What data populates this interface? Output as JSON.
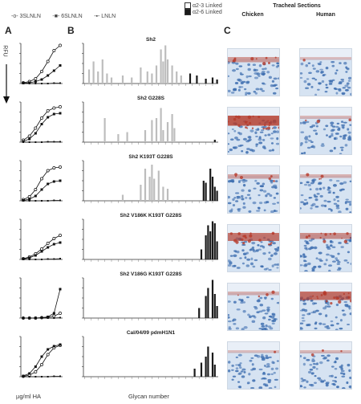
{
  "panels": {
    "a": "A",
    "b": "B",
    "c": "C"
  },
  "legend": {
    "series_a": [
      "3SLNLN",
      "6SLNLN",
      "LNLN"
    ],
    "series_b": [
      "α2-3 Linked",
      "α2-6 Linked"
    ]
  },
  "colors": {
    "alpha23": "#bdbdbd",
    "alpha26": "#1a1a1a",
    "tissue_bg": "#d6e3f2",
    "tissue_nuclei": "#3f6fb0",
    "stain": "#b53a2a"
  },
  "y_label_a": "RFU",
  "x_label_a": "µg/ml HA",
  "x_label_b": "Glycan number",
  "tracheal": {
    "title": "Tracheal Sections",
    "chicken": "Chicken",
    "human": "Human"
  },
  "row_titles": [
    "Sh2",
    "Sh2 G228S",
    "Sh2 K193T G228S",
    "Sh2 V186K K193T G228S",
    "Sh2 V186G K193T G228S",
    "Cal/04/09 pdmH1N1"
  ],
  "chart_data": [
    {
      "type": "line",
      "panel": "A",
      "ylabel": "RFU",
      "xlabel": "µg/ml HA",
      "rows": [
        {
          "row": "Sh2",
          "series": [
            {
              "name": "3SLNLN",
              "values": [
                0.02,
                0.05,
                0.12,
                0.3,
                0.55,
                0.82,
                0.95
              ]
            },
            {
              "name": "6SLNLN",
              "values": [
                0.01,
                0.02,
                0.05,
                0.1,
                0.2,
                0.32,
                0.45
              ]
            },
            {
              "name": "LNLN",
              "values": [
                0,
                0,
                0,
                0,
                0,
                0.01,
                0.01
              ]
            }
          ]
        },
        {
          "row": "Sh2 G228S",
          "series": [
            {
              "name": "3SLNLN",
              "values": [
                0.05,
                0.15,
                0.35,
                0.6,
                0.78,
                0.85,
                0.88
              ]
            },
            {
              "name": "6SLNLN",
              "values": [
                0.02,
                0.08,
                0.22,
                0.45,
                0.62,
                0.7,
                0.72
              ]
            },
            {
              "name": "LNLN",
              "values": [
                0,
                0,
                0,
                0,
                0.01,
                0.01,
                0.01
              ]
            }
          ]
        },
        {
          "row": "Sh2 K193T G228S",
          "series": [
            {
              "name": "3SLNLN",
              "values": [
                0.03,
                0.1,
                0.28,
                0.55,
                0.75,
                0.82,
                0.84
              ]
            },
            {
              "name": "6SLNLN",
              "values": [
                0.01,
                0.04,
                0.12,
                0.28,
                0.42,
                0.48,
                0.5
              ]
            },
            {
              "name": "LNLN",
              "values": [
                0,
                0,
                0,
                0,
                0,
                0.01,
                0.01
              ]
            }
          ]
        },
        {
          "row": "Sh2 V186K K193T G228S",
          "series": [
            {
              "name": "3SLNLN",
              "values": [
                0.02,
                0.06,
                0.14,
                0.26,
                0.4,
                0.52,
                0.6
              ]
            },
            {
              "name": "6SLNLN",
              "values": [
                0.01,
                0.04,
                0.1,
                0.2,
                0.3,
                0.38,
                0.42
              ]
            },
            {
              "name": "LNLN",
              "values": [
                0,
                0,
                0,
                0,
                0.01,
                0.01,
                0.02
              ]
            }
          ]
        },
        {
          "row": "Sh2 V186G K193T G228S",
          "series": [
            {
              "name": "3SLNLN",
              "values": [
                0,
                0,
                0,
                0.01,
                0.02,
                0.05,
                0.12
              ]
            },
            {
              "name": "6SLNLN",
              "values": [
                0,
                0,
                0,
                0.01,
                0.03,
                0.12,
                0.72
              ]
            },
            {
              "name": "LNLN",
              "values": [
                0,
                0,
                0,
                0,
                0,
                0,
                0.01
              ]
            }
          ]
        },
        {
          "row": "Cal/04/09 pdmH1N1",
          "series": [
            {
              "name": "3SLNLN",
              "values": [
                0.01,
                0.04,
                0.12,
                0.3,
                0.55,
                0.72,
                0.78
              ]
            },
            {
              "name": "6SLNLN",
              "values": [
                0.02,
                0.08,
                0.25,
                0.5,
                0.68,
                0.76,
                0.8
              ]
            },
            {
              "name": "LNLN",
              "values": [
                0,
                0,
                0,
                0,
                0,
                0.01,
                0.01
              ]
            }
          ]
        }
      ]
    },
    {
      "type": "bar",
      "panel": "B",
      "xlabel": "Glycan number",
      "glycan_count": 60,
      "alpha23_range": [
        1,
        46
      ],
      "alpha26_range": [
        47,
        60
      ],
      "rows": [
        {
          "row": "Sh2",
          "bars": [
            [
              3,
              0.35
            ],
            [
              5,
              0.55
            ],
            [
              7,
              0.3
            ],
            [
              9,
              0.6
            ],
            [
              11,
              0.25
            ],
            [
              13,
              0.15
            ],
            [
              18,
              0.2
            ],
            [
              22,
              0.15
            ],
            [
              26,
              0.4
            ],
            [
              29,
              0.3
            ],
            [
              31,
              0.25
            ],
            [
              33,
              0.45
            ],
            [
              35,
              0.85
            ],
            [
              36,
              0.55
            ],
            [
              37,
              0.95
            ],
            [
              38,
              0.6
            ],
            [
              40,
              0.45
            ],
            [
              42,
              0.3
            ],
            [
              44,
              0.2
            ],
            [
              48,
              0.25
            ],
            [
              51,
              0.2
            ],
            [
              55,
              0.12
            ],
            [
              58,
              0.15
            ],
            [
              60,
              0.1
            ]
          ]
        },
        {
          "row": "Sh2 G228S",
          "bars": [
            [
              10,
              0.6
            ],
            [
              16,
              0.2
            ],
            [
              20,
              0.25
            ],
            [
              28,
              0.3
            ],
            [
              31,
              0.55
            ],
            [
              33,
              0.6
            ],
            [
              35,
              0.85
            ],
            [
              36,
              0.3
            ],
            [
              38,
              0.5
            ],
            [
              40,
              0.7
            ],
            [
              41,
              0.35
            ],
            [
              59,
              0.06
            ]
          ]
        },
        {
          "row": "Sh2 K193T G228S",
          "bars": [
            [
              18,
              0.15
            ],
            [
              26,
              0.4
            ],
            [
              28,
              0.8
            ],
            [
              30,
              0.6
            ],
            [
              31,
              0.9
            ],
            [
              32,
              0.55
            ],
            [
              34,
              0.75
            ],
            [
              36,
              0.35
            ],
            [
              38,
              0.3
            ],
            [
              54,
              0.5
            ],
            [
              55,
              0.45
            ],
            [
              57,
              0.8
            ],
            [
              58,
              0.6
            ],
            [
              59,
              0.35
            ],
            [
              60,
              0.25
            ]
          ]
        },
        {
          "row": "Sh2 V186K K193T G228S",
          "bars": [
            [
              53,
              0.25
            ],
            [
              55,
              0.6
            ],
            [
              56,
              0.85
            ],
            [
              57,
              0.7
            ],
            [
              58,
              0.95
            ],
            [
              59,
              0.9
            ],
            [
              60,
              0.45
            ]
          ]
        },
        {
          "row": "Sh2 V186G K193T G228S",
          "bars": [
            [
              52,
              0.25
            ],
            [
              55,
              0.55
            ],
            [
              56,
              0.75
            ],
            [
              58,
              0.95
            ],
            [
              59,
              0.6
            ],
            [
              60,
              0.3
            ]
          ]
        },
        {
          "row": "Cal/04/09 pdmH1N1",
          "bars": [
            [
              50,
              0.2
            ],
            [
              53,
              0.35
            ],
            [
              55,
              0.5
            ],
            [
              56,
              0.75
            ],
            [
              58,
              0.6
            ],
            [
              59,
              0.3
            ]
          ]
        }
      ]
    }
  ]
}
